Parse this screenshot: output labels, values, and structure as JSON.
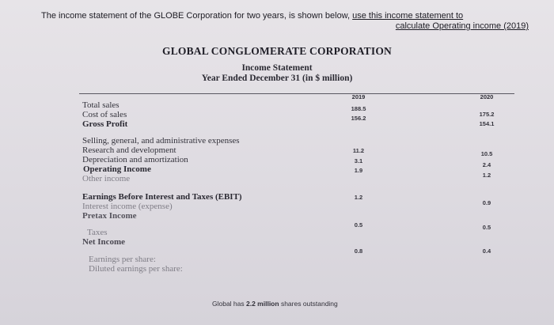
{
  "prompt": {
    "line1_a": "The income statement of the GLOBE Corporation for two years, is shown below, ",
    "line1_b": "use this income statement to",
    "line2": "calculate Operating income (2019)"
  },
  "statement": {
    "company": "GLOBAL CONGLOMERATE CORPORATION",
    "title": "Income Statement",
    "period": "Year Ended December 31 (in $ million)",
    "columns": [
      "2019",
      "2020"
    ],
    "rows": [
      {
        "label": "Total sales",
        "v2019": "188.5",
        "v2020": "175.2"
      },
      {
        "label": "Cost of sales",
        "v2019": "156.2",
        "v2020": "154.1"
      },
      {
        "label": "Gross Profit",
        "v2019": "",
        "v2020": ""
      },
      {
        "label": "Selling, general, and administrative expenses",
        "v2019": "11.2",
        "v2020": "10.5"
      },
      {
        "label": "Research and development",
        "v2019": "3.1",
        "v2020": "2.4"
      },
      {
        "label": "Depreciation and amortization",
        "v2019": "1.9",
        "v2020": "1.2"
      },
      {
        "label": "Operating Income",
        "v2019": "",
        "v2020": ""
      },
      {
        "label": "Other income",
        "v2019": "1.2",
        "v2020": "0.9"
      },
      {
        "label": "Earnings Before Interest and Taxes (EBIT)",
        "v2019": "",
        "v2020": ""
      },
      {
        "label": "Interest income (expense)",
        "v2019": "0.5",
        "v2020": "0.5"
      },
      {
        "label": "Pretax Income",
        "v2019": "",
        "v2020": ""
      },
      {
        "label": "Taxes",
        "v2019": "0.8",
        "v2020": "0.4"
      },
      {
        "label": "Net Income",
        "v2019": "",
        "v2020": ""
      },
      {
        "label": "Earnings per share:",
        "v2019": "",
        "v2020": ""
      },
      {
        "label": "Diluted earnings per share:",
        "v2019": "",
        "v2020": ""
      }
    ],
    "footnote_a": "Global has ",
    "footnote_b": "2.2 million",
    "footnote_c": " shares outstanding"
  }
}
